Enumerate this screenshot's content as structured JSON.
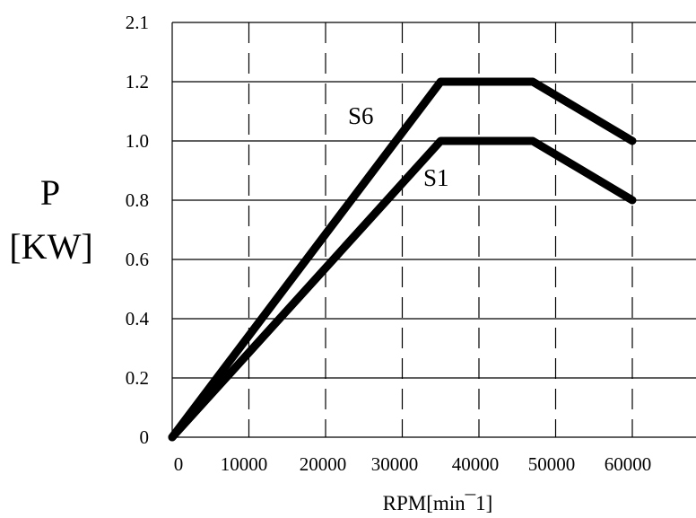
{
  "chart_data": {
    "type": "line",
    "title": "",
    "xlabel": "RPM[min¯1]",
    "ylabel_line1": "P",
    "ylabel_line2": "[KW]",
    "x_ticks": [
      "0",
      "10000",
      "20000",
      "30000",
      "40000",
      "50000",
      "60000"
    ],
    "y_ticks": [
      "0",
      "0.2",
      "0.4",
      "0.6",
      "0.8",
      "1.0",
      "1.2",
      "2.1"
    ],
    "grid": true,
    "series": [
      {
        "name": "S6",
        "x": [
          0,
          35000,
          47000,
          60000
        ],
        "y": [
          0,
          1.2,
          1.2,
          1.0
        ]
      },
      {
        "name": "S1",
        "x": [
          0,
          35000,
          47000,
          60000
        ],
        "y": [
          0,
          1.0,
          1.0,
          0.8
        ]
      }
    ],
    "line_color": "#000000"
  }
}
